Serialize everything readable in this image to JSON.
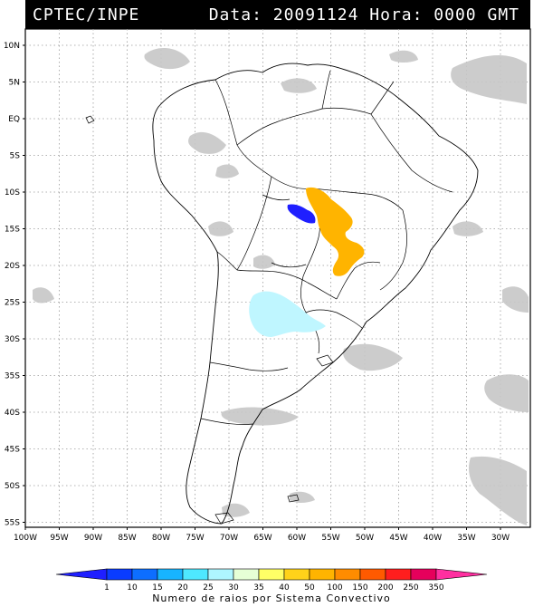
{
  "header": {
    "left": "CPTEC/INPE",
    "right": "Data: 20091124 Hora: 0000 GMT"
  },
  "latitude_labels": [
    "10N",
    "5N",
    "EQ",
    "5S",
    "10S",
    "15S",
    "20S",
    "25S",
    "30S",
    "35S",
    "40S",
    "45S",
    "50S",
    "55S"
  ],
  "longitude_labels": [
    "100W",
    "95W",
    "90W",
    "85W",
    "80W",
    "75W",
    "70W",
    "65W",
    "60W",
    "55W",
    "50W",
    "45W",
    "40W",
    "35W",
    "30W"
  ],
  "colorbar": {
    "values": [
      "1",
      "10",
      "15",
      "20",
      "25",
      "30",
      "35",
      "40",
      "50",
      "100",
      "150",
      "200",
      "250",
      "350"
    ],
    "colors": [
      "#1f1fff",
      "#0a3cff",
      "#0d6eff",
      "#17b4ff",
      "#4ee8ff",
      "#aef6ff",
      "#e6ffd6",
      "#ffff66",
      "#ffd21a",
      "#ffb400",
      "#ff8c00",
      "#ff5a00",
      "#ff1e1e",
      "#e6005c",
      "#ff2fa0"
    ],
    "caption": "Numero de raios por Sistema Convectivo"
  },
  "features": {
    "convective_colors": {
      "dark_blue": "#1f1fff",
      "orange": "#ffb400",
      "light_cyan": "#bff6ff",
      "cloud_gray": "#bdbdbd"
    }
  }
}
